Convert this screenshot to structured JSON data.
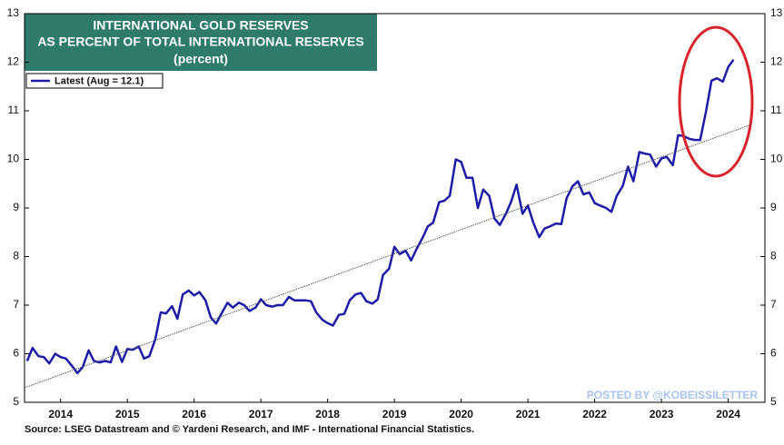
{
  "chart_data": {
    "type": "line",
    "title": "INTERNATIONAL GOLD RESERVES",
    "subtitle": "AS PERCENT OF TOTAL INTERNATIONAL RESERVES",
    "unit_note": "(percent)",
    "source": "Source: LSEG Datastream and © Yardeni Research, and IMF - International Financial Statistics.",
    "watermark": "POSTED BY @KOBEISSILETTER",
    "xlim": [
      2013.96,
      2025.05
    ],
    "xticks": [
      {
        "value": 2014.5,
        "label": "2014"
      },
      {
        "value": 2015.5,
        "label": "2015"
      },
      {
        "value": 2016.5,
        "label": "2016"
      },
      {
        "value": 2017.5,
        "label": "2017"
      },
      {
        "value": 2018.5,
        "label": "2018"
      },
      {
        "value": 2019.5,
        "label": "2019"
      },
      {
        "value": 2020.5,
        "label": "2020"
      },
      {
        "value": 2021.5,
        "label": "2021"
      },
      {
        "value": 2022.5,
        "label": "2022"
      },
      {
        "value": 2023.5,
        "label": "2023"
      },
      {
        "value": 2024.5,
        "label": "2024"
      }
    ],
    "ylim": [
      5,
      13
    ],
    "yticks": [
      5,
      6,
      7,
      8,
      9,
      10,
      11,
      12,
      13
    ],
    "y2lim": [
      5,
      13
    ],
    "y2ticks": [
      5,
      6,
      7,
      8,
      9,
      10,
      11,
      12,
      13
    ],
    "grid": false,
    "legend": "top-left",
    "series": [
      {
        "name": "Latest (Aug = 12.1)",
        "color": "#1c1ca8",
        "x": [
          2014.0,
          2014.08,
          2014.17,
          2014.25,
          2014.33,
          2014.42,
          2014.5,
          2014.58,
          2014.67,
          2014.75,
          2014.83,
          2014.92,
          2015.0,
          2015.08,
          2015.17,
          2015.25,
          2015.33,
          2015.42,
          2015.5,
          2015.58,
          2015.67,
          2015.75,
          2015.83,
          2015.92,
          2016.0,
          2016.08,
          2016.17,
          2016.25,
          2016.33,
          2016.42,
          2016.5,
          2016.58,
          2016.67,
          2016.75,
          2016.83,
          2016.92,
          2017.0,
          2017.08,
          2017.17,
          2017.25,
          2017.33,
          2017.42,
          2017.5,
          2017.58,
          2017.67,
          2017.75,
          2017.83,
          2017.92,
          2018.0,
          2018.08,
          2018.17,
          2018.25,
          2018.33,
          2018.42,
          2018.5,
          2018.58,
          2018.67,
          2018.75,
          2018.83,
          2018.92,
          2019.0,
          2019.08,
          2019.17,
          2019.25,
          2019.33,
          2019.42,
          2019.5,
          2019.58,
          2019.67,
          2019.75,
          2019.83,
          2019.92,
          2020.0,
          2020.08,
          2020.17,
          2020.25,
          2020.33,
          2020.42,
          2020.5,
          2020.58,
          2020.67,
          2020.75,
          2020.83,
          2020.92,
          2021.0,
          2021.08,
          2021.17,
          2021.25,
          2021.33,
          2021.42,
          2021.5,
          2021.58,
          2021.67,
          2021.75,
          2021.83,
          2021.92,
          2022.0,
          2022.08,
          2022.17,
          2022.25,
          2022.33,
          2022.42,
          2022.5,
          2022.58,
          2022.67,
          2022.75,
          2022.83,
          2022.92,
          2023.0,
          2023.08,
          2023.17,
          2023.25,
          2023.33,
          2023.42,
          2023.5,
          2023.58,
          2023.67,
          2023.75,
          2023.83,
          2023.92,
          2024.0,
          2024.08,
          2024.17,
          2024.25,
          2024.33,
          2024.42,
          2024.5,
          2024.58
        ],
        "values": [
          5.85,
          6.12,
          5.95,
          5.93,
          5.8,
          6.0,
          5.93,
          5.9,
          5.75,
          5.6,
          5.72,
          6.07,
          5.85,
          5.82,
          5.85,
          5.82,
          6.15,
          5.83,
          6.1,
          6.08,
          6.15,
          5.9,
          5.95,
          6.3,
          6.85,
          6.83,
          6.98,
          6.72,
          7.22,
          7.3,
          7.2,
          7.27,
          7.1,
          6.75,
          6.62,
          6.85,
          7.05,
          6.95,
          7.05,
          7.0,
          6.88,
          6.95,
          7.12,
          7.0,
          6.97,
          7.0,
          7.0,
          7.17,
          7.1,
          7.1,
          7.1,
          7.08,
          6.85,
          6.7,
          6.63,
          6.58,
          6.8,
          6.82,
          7.1,
          7.22,
          7.25,
          7.08,
          7.03,
          7.12,
          7.62,
          7.75,
          8.2,
          8.05,
          8.12,
          7.92,
          8.15,
          8.38,
          8.62,
          8.7,
          9.12,
          9.15,
          9.25,
          10.0,
          9.95,
          9.62,
          9.62,
          9.0,
          9.38,
          9.25,
          8.78,
          8.65,
          8.88,
          9.13,
          9.48,
          8.88,
          9.05,
          8.7,
          8.4,
          8.58,
          8.62,
          8.68,
          8.67,
          9.2,
          9.45,
          9.55,
          9.28,
          9.32,
          9.1,
          9.05,
          9.0,
          8.92,
          9.25,
          9.45,
          9.85,
          9.55,
          10.15,
          10.12,
          10.1,
          9.85,
          10.02,
          10.05,
          9.88,
          10.5,
          10.48,
          10.42,
          10.4,
          10.4,
          11.0,
          11.62,
          11.67,
          11.6,
          11.9,
          12.05
        ]
      }
    ],
    "trend_line": {
      "color": "#555555",
      "x": [
        2013.96,
        2024.85
      ],
      "values": [
        5.3,
        10.72
      ]
    }
  }
}
